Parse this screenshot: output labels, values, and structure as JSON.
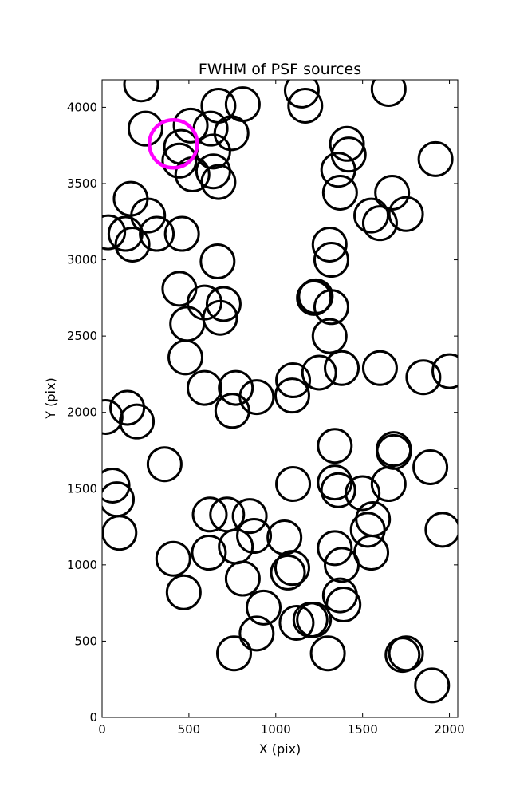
{
  "chart_data": {
    "type": "scatter",
    "title": "FWHM of PSF sources",
    "xlabel": "X (pix)",
    "ylabel": "Y (pix)",
    "xlim": [
      0,
      2048
    ],
    "ylim": [
      0,
      4180
    ],
    "xticks": [
      0,
      500,
      1000,
      1500,
      2000
    ],
    "yticks": [
      0,
      500,
      1000,
      1500,
      2000,
      2500,
      3000,
      3500,
      4000
    ],
    "grid": false,
    "marker": "open-circle",
    "colors": {
      "sources": "#000000",
      "highlight": "#ff00ff"
    },
    "sources": [
      {
        "x": 225,
        "y": 4150
      },
      {
        "x": 250,
        "y": 3860
      },
      {
        "x": 510,
        "y": 3880
      },
      {
        "x": 455,
        "y": 3740
      },
      {
        "x": 445,
        "y": 3650
      },
      {
        "x": 520,
        "y": 3560
      },
      {
        "x": 625,
        "y": 3860
      },
      {
        "x": 670,
        "y": 4010
      },
      {
        "x": 810,
        "y": 4020
      },
      {
        "x": 745,
        "y": 3830
      },
      {
        "x": 640,
        "y": 3710
      },
      {
        "x": 640,
        "y": 3580
      },
      {
        "x": 670,
        "y": 3510
      },
      {
        "x": 165,
        "y": 3400
      },
      {
        "x": 265,
        "y": 3290
      },
      {
        "x": 35,
        "y": 3180
      },
      {
        "x": 135,
        "y": 3170
      },
      {
        "x": 175,
        "y": 3100
      },
      {
        "x": 315,
        "y": 3170
      },
      {
        "x": 460,
        "y": 3170
      },
      {
        "x": 665,
        "y": 2990
      },
      {
        "x": 445,
        "y": 2810
      },
      {
        "x": 590,
        "y": 2720
      },
      {
        "x": 700,
        "y": 2710
      },
      {
        "x": 680,
        "y": 2620
      },
      {
        "x": 490,
        "y": 2580
      },
      {
        "x": 480,
        "y": 2360
      },
      {
        "x": 590,
        "y": 2160
      },
      {
        "x": 770,
        "y": 2160
      },
      {
        "x": 750,
        "y": 2010
      },
      {
        "x": 890,
        "y": 2100
      },
      {
        "x": 1100,
        "y": 2210
      },
      {
        "x": 1095,
        "y": 2110
      },
      {
        "x": 1250,
        "y": 2260
      },
      {
        "x": 1380,
        "y": 2290
      },
      {
        "x": 1600,
        "y": 2290
      },
      {
        "x": 1850,
        "y": 2230
      },
      {
        "x": 2000,
        "y": 2270
      },
      {
        "x": 1230,
        "y": 2760
      },
      {
        "x": 1220,
        "y": 2750
      },
      {
        "x": 1320,
        "y": 2690
      },
      {
        "x": 1310,
        "y": 2500
      },
      {
        "x": 1310,
        "y": 3100
      },
      {
        "x": 1320,
        "y": 3000
      },
      {
        "x": 1150,
        "y": 4110
      },
      {
        "x": 1170,
        "y": 4010
      },
      {
        "x": 1410,
        "y": 3760
      },
      {
        "x": 1420,
        "y": 3690
      },
      {
        "x": 1360,
        "y": 3590
      },
      {
        "x": 1370,
        "y": 3440
      },
      {
        "x": 1550,
        "y": 3290
      },
      {
        "x": 1600,
        "y": 3240
      },
      {
        "x": 1670,
        "y": 3440
      },
      {
        "x": 1750,
        "y": 3300
      },
      {
        "x": 1920,
        "y": 3660
      },
      {
        "x": 1650,
        "y": 4120
      },
      {
        "x": 20,
        "y": 1970
      },
      {
        "x": 145,
        "y": 2030
      },
      {
        "x": 200,
        "y": 1940
      },
      {
        "x": 360,
        "y": 1660
      },
      {
        "x": 60,
        "y": 1520
      },
      {
        "x": 85,
        "y": 1430
      },
      {
        "x": 100,
        "y": 1210
      },
      {
        "x": 1340,
        "y": 1780
      },
      {
        "x": 1680,
        "y": 1760
      },
      {
        "x": 1680,
        "y": 1740
      },
      {
        "x": 1890,
        "y": 1640
      },
      {
        "x": 1100,
        "y": 1530
      },
      {
        "x": 1340,
        "y": 1540
      },
      {
        "x": 1360,
        "y": 1490
      },
      {
        "x": 1500,
        "y": 1470
      },
      {
        "x": 1650,
        "y": 1530
      },
      {
        "x": 620,
        "y": 1330
      },
      {
        "x": 720,
        "y": 1330
      },
      {
        "x": 850,
        "y": 1320
      },
      {
        "x": 875,
        "y": 1190
      },
      {
        "x": 770,
        "y": 1120
      },
      {
        "x": 615,
        "y": 1080
      },
      {
        "x": 410,
        "y": 1040
      },
      {
        "x": 470,
        "y": 820
      },
      {
        "x": 810,
        "y": 910
      },
      {
        "x": 1050,
        "y": 1180
      },
      {
        "x": 1070,
        "y": 950
      },
      {
        "x": 1095,
        "y": 980
      },
      {
        "x": 1340,
        "y": 1110
      },
      {
        "x": 1380,
        "y": 1000
      },
      {
        "x": 1530,
        "y": 1230
      },
      {
        "x": 1560,
        "y": 1300
      },
      {
        "x": 1550,
        "y": 1080
      },
      {
        "x": 1960,
        "y": 1230
      },
      {
        "x": 1370,
        "y": 800
      },
      {
        "x": 1390,
        "y": 740
      },
      {
        "x": 930,
        "y": 720
      },
      {
        "x": 890,
        "y": 550
      },
      {
        "x": 1120,
        "y": 620
      },
      {
        "x": 1200,
        "y": 640
      },
      {
        "x": 1220,
        "y": 640
      },
      {
        "x": 1300,
        "y": 420
      },
      {
        "x": 760,
        "y": 420
      },
      {
        "x": 1730,
        "y": 410
      },
      {
        "x": 1750,
        "y": 420
      },
      {
        "x": 1900,
        "y": 210
      }
    ],
    "highlight": {
      "x": 410,
      "y": 3760
    }
  }
}
